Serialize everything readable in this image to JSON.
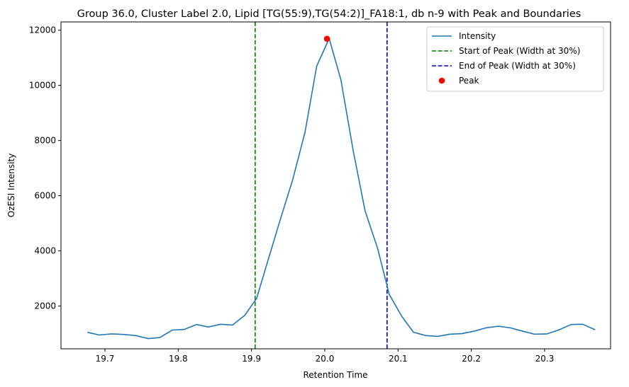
{
  "chart_data": {
    "type": "line",
    "title": "Group 36.0, Cluster Label 2.0, Lipid [TG(55:9),TG(54:2)]_FA18:1, db n-9 with Peak and Boundaries",
    "xlabel": "Retention Time",
    "ylabel": "OzESI Intensity",
    "xlim": [
      19.64,
      20.39
    ],
    "ylim": [
      450,
      12300
    ],
    "xticks": [
      19.7,
      19.8,
      19.9,
      20.0,
      20.1,
      20.2,
      20.3
    ],
    "xtick_labels": [
      "19.7",
      "19.8",
      "19.9",
      "20.0",
      "20.1",
      "20.2",
      "20.3"
    ],
    "yticks": [
      2000,
      4000,
      6000,
      8000,
      10000,
      12000
    ],
    "ytick_labels": [
      "2000",
      "4000",
      "6000",
      "8000",
      "10000",
      "12000"
    ],
    "grid": false,
    "legend_position": "top-right",
    "series": [
      {
        "name": "Intensity",
        "color": "#1f77b4",
        "x": [
          19.676,
          19.692,
          19.709,
          19.725,
          19.742,
          19.759,
          19.775,
          19.792,
          19.808,
          19.825,
          19.841,
          19.858,
          19.874,
          19.891,
          19.907,
          19.923,
          19.94,
          19.956,
          19.973,
          19.989,
          20.006,
          20.022,
          20.039,
          20.055,
          20.072,
          20.088,
          20.105,
          20.121,
          20.138,
          20.154,
          20.171,
          20.187,
          20.204,
          20.22,
          20.237,
          20.253,
          20.27,
          20.286,
          20.303,
          20.319,
          20.336,
          20.352,
          20.369
        ],
        "y": [
          1050,
          950,
          990,
          970,
          930,
          820,
          860,
          1130,
          1150,
          1330,
          1240,
          1340,
          1310,
          1670,
          2280,
          3700,
          5200,
          6560,
          8300,
          10700,
          11700,
          10200,
          7600,
          5450,
          4100,
          2420,
          1630,
          1050,
          930,
          900,
          980,
          1000,
          1090,
          1210,
          1270,
          1210,
          1090,
          980,
          990,
          1130,
          1330,
          1340,
          1140
        ]
      }
    ],
    "peak": {
      "name": "Peak",
      "x": 20.003,
      "y": 11690,
      "color": "#ff0000"
    },
    "boundaries": [
      {
        "name": "Start of Peak (Width at 30%)",
        "x": 19.905,
        "color": "#008000"
      },
      {
        "name": "End of Peak (Width at 30%)",
        "x": 20.085,
        "color": "#0000cc"
      }
    ],
    "legend": [
      {
        "label": "Intensity",
        "style": "solid",
        "color": "#1f77b4"
      },
      {
        "label": "Start of Peak (Width at 30%)",
        "style": "dashed",
        "color": "#008000"
      },
      {
        "label": "End of Peak (Width at 30%)",
        "style": "dashed",
        "color": "#0000cc"
      },
      {
        "label": "Peak",
        "style": "marker",
        "color": "#ff0000"
      }
    ]
  }
}
